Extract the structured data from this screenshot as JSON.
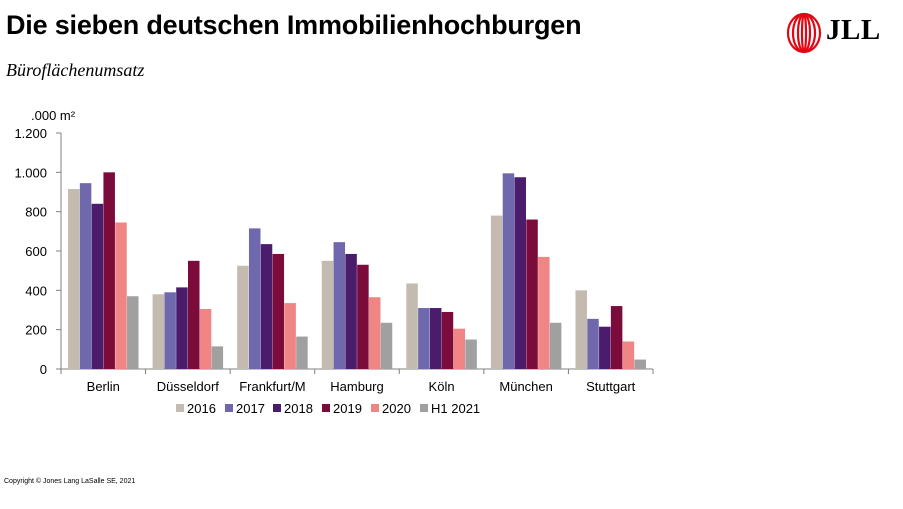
{
  "header": {
    "title": "Die sieben deutschen Immobilienhochburgen",
    "subtitle": "Büroflächenumsatz",
    "logo_text": "JLL"
  },
  "footer": {
    "copyright": "Copyright © Jones Lang LaSalle SE, 2021"
  },
  "colors": {
    "logo_red": "#e30613"
  },
  "chart_data": {
    "type": "bar",
    "title": "Die sieben deutschen Immobilienhochburgen",
    "subtitle": "Büroflächenumsatz",
    "ylabel": ".000 m²",
    "xlabel": "",
    "ylim": [
      0,
      1200
    ],
    "yticks": [
      0,
      200,
      400,
      600,
      800,
      1000,
      1200
    ],
    "ytick_labels": [
      "0",
      "200",
      "400",
      "600",
      "800",
      "1.000",
      "1.200"
    ],
    "categories": [
      "Berlin",
      "Düsseldorf",
      "Frankfurt/M",
      "Hamburg",
      "Köln",
      "München",
      "Stuttgart"
    ],
    "series": [
      {
        "name": "2016",
        "color": "#c4bbb0",
        "values": [
          915,
          380,
          525,
          550,
          435,
          780,
          400
        ]
      },
      {
        "name": "2017",
        "color": "#7068ad",
        "values": [
          945,
          390,
          715,
          645,
          310,
          995,
          255
        ]
      },
      {
        "name": "2018",
        "color": "#4b1c6b",
        "values": [
          840,
          415,
          635,
          585,
          310,
          975,
          215
        ]
      },
      {
        "name": "2019",
        "color": "#7a0b3a",
        "values": [
          1000,
          550,
          585,
          530,
          290,
          760,
          320
        ]
      },
      {
        "name": "2020",
        "color": "#ef8585",
        "values": [
          745,
          305,
          335,
          365,
          205,
          570,
          140
        ]
      },
      {
        "name": "H1 2021",
        "color": "#a0a0a0",
        "values": [
          370,
          115,
          165,
          235,
          150,
          235,
          48
        ]
      }
    ],
    "legend_position": "bottom",
    "grid": false
  }
}
